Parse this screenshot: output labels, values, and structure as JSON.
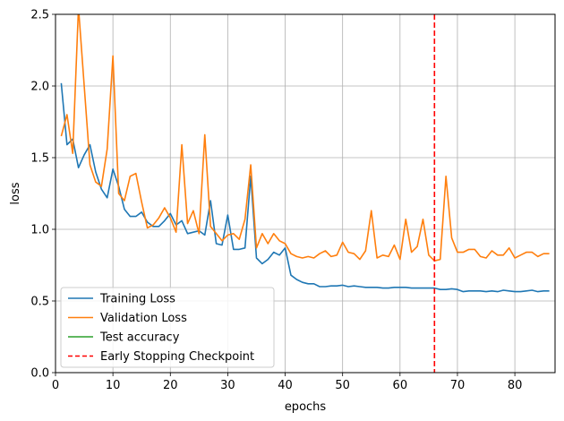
{
  "chart_data": {
    "type": "line",
    "title": "",
    "xlabel": "epochs",
    "ylabel": "loss",
    "xlim": [
      0,
      87
    ],
    "ylim": [
      0,
      2.5
    ],
    "xticks": [
      0,
      10,
      20,
      30,
      40,
      50,
      60,
      70,
      80
    ],
    "yticks": [
      0.0,
      0.5,
      1.0,
      1.5,
      2.0,
      2.5
    ],
    "xtick_labels": [
      "0",
      "10",
      "20",
      "30",
      "40",
      "50",
      "60",
      "70",
      "80"
    ],
    "ytick_labels": [
      "0.0",
      "0.5",
      "1.0",
      "1.5",
      "2.0",
      "2.5"
    ],
    "grid": true,
    "legend_position": "lower-left",
    "x": [
      1,
      2,
      3,
      4,
      5,
      6,
      7,
      8,
      9,
      10,
      11,
      12,
      13,
      14,
      15,
      16,
      17,
      18,
      19,
      20,
      21,
      22,
      23,
      24,
      25,
      26,
      27,
      28,
      29,
      30,
      31,
      32,
      33,
      34,
      35,
      36,
      37,
      38,
      39,
      40,
      41,
      42,
      43,
      44,
      45,
      46,
      47,
      48,
      49,
      50,
      51,
      52,
      53,
      54,
      55,
      56,
      57,
      58,
      59,
      60,
      61,
      62,
      63,
      64,
      65,
      66,
      67,
      68,
      69,
      70,
      71,
      72,
      73,
      74,
      75,
      76,
      77,
      78,
      79,
      80,
      81,
      82,
      83,
      84,
      85,
      86
    ],
    "series": [
      {
        "name": "Training Loss",
        "color": "#1f77b4",
        "style": "solid",
        "values": [
          2.02,
          1.59,
          1.63,
          1.43,
          1.52,
          1.59,
          1.4,
          1.28,
          1.22,
          1.42,
          1.3,
          1.14,
          1.09,
          1.09,
          1.12,
          1.05,
          1.02,
          1.02,
          1.06,
          1.11,
          1.03,
          1.06,
          0.97,
          0.98,
          0.99,
          0.96,
          1.2,
          0.9,
          0.89,
          1.1,
          0.86,
          0.86,
          0.87,
          1.37,
          0.8,
          0.76,
          0.79,
          0.84,
          0.82,
          0.87,
          0.68,
          0.65,
          0.63,
          0.62,
          0.62,
          0.6,
          0.6,
          0.605,
          0.605,
          0.61,
          0.6,
          0.605,
          0.6,
          0.595,
          0.595,
          0.595,
          0.59,
          0.59,
          0.595,
          0.595,
          0.595,
          0.59,
          0.59,
          0.59,
          0.59,
          0.59,
          0.58,
          0.58,
          0.585,
          0.58,
          0.565,
          0.57,
          0.57,
          0.57,
          0.565,
          0.57,
          0.565,
          0.575,
          0.57,
          0.565,
          0.565,
          0.57,
          0.575,
          0.565,
          0.57,
          0.57
        ]
      },
      {
        "name": "Validation Loss",
        "color": "#ff7f0e",
        "style": "solid",
        "values": [
          1.65,
          1.8,
          1.53,
          2.55,
          2.0,
          1.45,
          1.33,
          1.3,
          1.56,
          2.21,
          1.25,
          1.2,
          1.37,
          1.39,
          1.19,
          1.01,
          1.03,
          1.08,
          1.15,
          1.08,
          0.98,
          1.59,
          1.04,
          1.13,
          0.97,
          1.66,
          1.02,
          0.97,
          0.92,
          0.96,
          0.97,
          0.93,
          1.07,
          1.45,
          0.87,
          0.97,
          0.9,
          0.97,
          0.92,
          0.9,
          0.83,
          0.81,
          0.8,
          0.81,
          0.8,
          0.83,
          0.85,
          0.81,
          0.82,
          0.91,
          0.84,
          0.83,
          0.79,
          0.85,
          1.13,
          0.8,
          0.82,
          0.81,
          0.89,
          0.79,
          1.07,
          0.84,
          0.88,
          1.07,
          0.82,
          0.78,
          0.79,
          1.37,
          0.94,
          0.84,
          0.84,
          0.86,
          0.86,
          0.81,
          0.8,
          0.85,
          0.82,
          0.82,
          0.87,
          0.8,
          0.82,
          0.84,
          0.84,
          0.81,
          0.83,
          0.83
        ]
      }
    ],
    "extra_legend_entries": [
      {
        "name": "Test accuracy",
        "color": "#2ca02c",
        "style": "solid"
      }
    ],
    "vlines": [
      {
        "name": "Early Stopping Checkpoint",
        "x": 66,
        "color": "#ff0000",
        "style": "dashed"
      }
    ],
    "legend": [
      "Training Loss",
      "Validation Loss",
      "Test accuracy",
      "Early Stopping Checkpoint"
    ]
  }
}
